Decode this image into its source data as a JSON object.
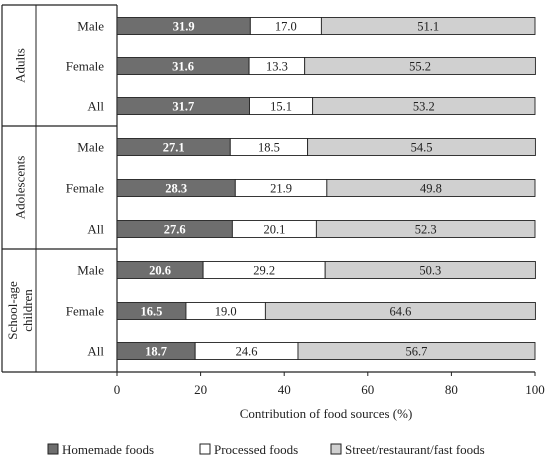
{
  "chart_data": {
    "type": "bar",
    "orientation": "horizontal",
    "stacked": true,
    "xlabel": "Contribution of food sources (%)",
    "xlim": [
      0,
      100
    ],
    "x_ticks": [
      "0",
      "20",
      "40",
      "60",
      "80",
      "100"
    ],
    "grid": false,
    "legend_position": "bottom",
    "groups": [
      {
        "name": "Adults",
        "rows": [
          {
            "label": "Male",
            "values": [
              31.9,
              17.0,
              51.1
            ],
            "labels": [
              "31.9",
              "17.0",
              "51.1"
            ]
          },
          {
            "label": "Female",
            "values": [
              31.6,
              13.3,
              55.2
            ],
            "labels": [
              "31.6",
              "13.3",
              "55.2"
            ]
          },
          {
            "label": "All",
            "values": [
              31.7,
              15.1,
              53.2
            ],
            "labels": [
              "31.7",
              "15.1",
              "53.2"
            ]
          }
        ]
      },
      {
        "name": "Adolescents",
        "rows": [
          {
            "label": "Male",
            "values": [
              27.1,
              18.5,
              54.5
            ],
            "labels": [
              "27.1",
              "18.5",
              "54.5"
            ]
          },
          {
            "label": "Female",
            "values": [
              28.3,
              21.9,
              49.8
            ],
            "labels": [
              "28.3",
              "21.9",
              "49.8"
            ]
          },
          {
            "label": "All",
            "values": [
              27.6,
              20.1,
              52.3
            ],
            "labels": [
              "27.6",
              "20.1",
              "52.3"
            ]
          }
        ]
      },
      {
        "name": "School-age children",
        "name_lines": [
          "School-age",
          "children"
        ],
        "rows": [
          {
            "label": "Male",
            "values": [
              20.6,
              29.2,
              50.3
            ],
            "labels": [
              "20.6",
              "29.2",
              "50.3"
            ]
          },
          {
            "label": "Female",
            "values": [
              16.5,
              19.0,
              64.6
            ],
            "labels": [
              "16.5",
              "19.0",
              "64.6"
            ]
          },
          {
            "label": "All",
            "values": [
              18.7,
              24.6,
              56.7
            ],
            "labels": [
              "18.7",
              "24.6",
              "56.7"
            ]
          }
        ]
      }
    ],
    "series": [
      {
        "name": "Homemade foods",
        "color": "#6e6e6e",
        "label_color": "#ffffff",
        "label_bold": true
      },
      {
        "name": "Processed foods",
        "color": "#ffffff",
        "label_color": "#222222",
        "label_bold": false
      },
      {
        "name": "Street/restaurant/fast foods",
        "color": "#d0d0d0",
        "label_color": "#222222",
        "label_bold": false
      }
    ]
  }
}
